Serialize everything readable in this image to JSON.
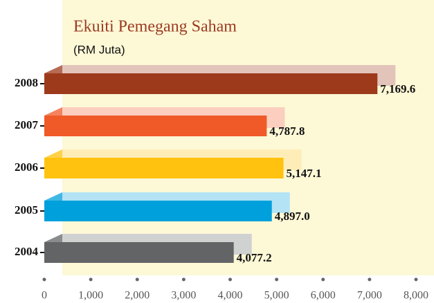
{
  "chart_data": {
    "type": "bar",
    "orientation": "horizontal",
    "title": "Ekuiti Pemegang Saham",
    "subtitle": "(RM Juta)",
    "categories": [
      "2008",
      "2007",
      "2006",
      "2005",
      "2004"
    ],
    "values": [
      7169.6,
      4787.8,
      5147.1,
      4897.0,
      4077.2
    ],
    "value_labels": [
      "7,169.6",
      "4,787.8",
      "5,147.1",
      "4,897.0",
      "4,077.2"
    ],
    "colors": [
      "#9e3a1c",
      "#f05a28",
      "#ffc20e",
      "#00a0dc",
      "#636466"
    ],
    "xlim": [
      0,
      8000
    ],
    "xticks": [
      0,
      {
        "value": 1000,
        "label": "1,000"
      },
      {
        "value": 2000,
        "label": "2,000"
      },
      {
        "value": 3000,
        "label": "3,000"
      },
      {
        "value": 4000,
        "label": "4,000"
      },
      {
        "value": 5000,
        "label": "5,000"
      },
      {
        "value": 6000,
        "label": "6,000"
      },
      {
        "value": 7000,
        "label": "7,000"
      },
      {
        "value": 8000,
        "label": "8,000"
      }
    ]
  }
}
